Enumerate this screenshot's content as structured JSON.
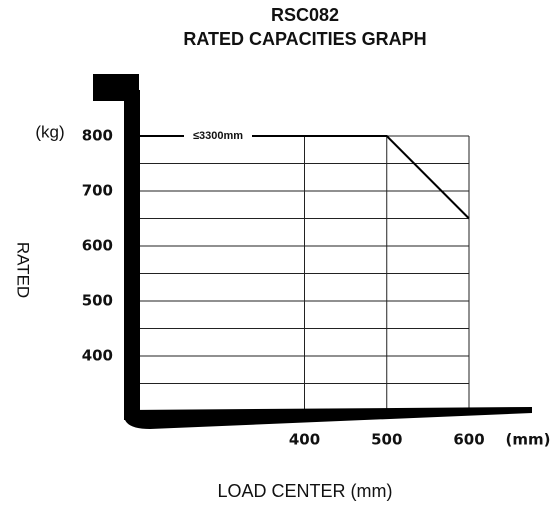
{
  "chart_data": {
    "type": "line",
    "title": "RSC082",
    "subtitle": "RATED CAPACITIES GRAPH",
    "x_label": "LOAD CENTER (mm)",
    "x_unit": "(mm)",
    "y_label": "RATED",
    "y_unit": "(kg)",
    "annotation": "≤3300mm",
    "x": [
      200,
      500,
      600
    ],
    "values": [
      800,
      800,
      650
    ],
    "color": "#000000",
    "xlim": [
      200,
      600
    ],
    "xticks": [
      400,
      500,
      600
    ],
    "ylim": [
      300,
      800
    ],
    "yticks": [
      400,
      500,
      600,
      700,
      800
    ],
    "minor_yticks": [
      350,
      450,
      550,
      650,
      750
    ],
    "grid": true
  }
}
